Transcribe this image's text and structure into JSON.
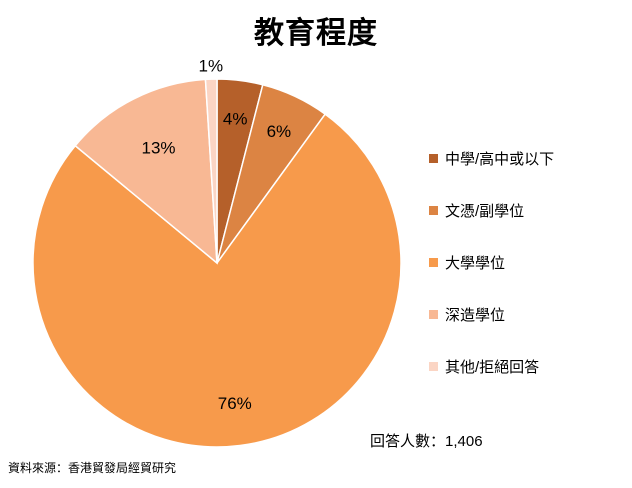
{
  "chart_data": {
    "type": "pie",
    "title": "教育程度",
    "slices": [
      {
        "label": "中學/高中或以下",
        "value": 4,
        "data_label": "4%",
        "color": "#B5602A"
      },
      {
        "label": "文憑/副學位",
        "value": 6,
        "data_label": "6%",
        "color": "#DC8443"
      },
      {
        "label": "大學學位",
        "value": 76,
        "data_label": "76%",
        "color": "#F79A4B"
      },
      {
        "label": "深造學位",
        "value": 13,
        "data_label": "13%",
        "color": "#F8B894"
      },
      {
        "label": "其他/拒絕回答",
        "value": 1,
        "data_label": "1%",
        "color": "#FBD5C4"
      }
    ],
    "legend_position": "right"
  },
  "footer": {
    "respondents": "回答人數：1,406",
    "source": "資料來源：香港貿發局經貿研究"
  }
}
